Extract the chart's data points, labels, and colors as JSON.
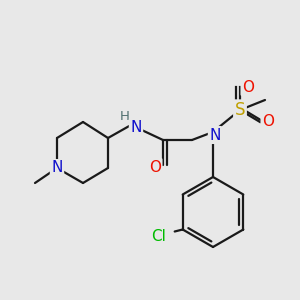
{
  "bg_color": "#e8e8e8",
  "bond_color": "#1a1a1a",
  "atom_colors": {
    "N": "#1010cc",
    "NH": "#507070",
    "O": "#ee1100",
    "S": "#c0a000",
    "Cl": "#00bb00",
    "C": "#1a1a1a"
  },
  "figsize": [
    3.0,
    3.0
  ],
  "dpi": 100
}
